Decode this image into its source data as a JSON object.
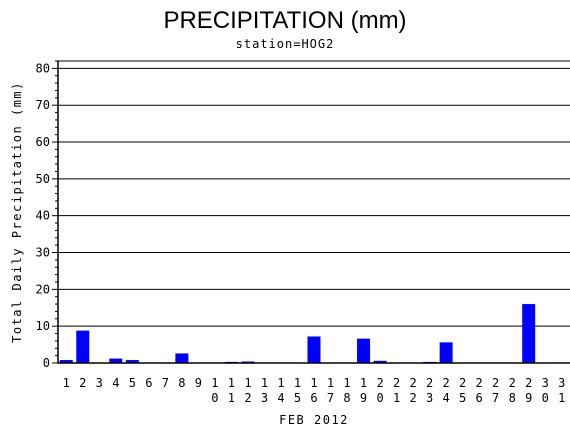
{
  "chart_data": {
    "type": "bar",
    "title": "PRECIPITATION (mm)",
    "subtitle": "station=HOG2",
    "xlabel": "FEB 2012",
    "ylabel": "Total Daily Precipitation (mm)",
    "ylim": [
      0,
      82
    ],
    "yticks": [
      0,
      10,
      20,
      30,
      40,
      50,
      60,
      70,
      80
    ],
    "grid": true,
    "categories": [
      "1",
      "2",
      "3",
      "4",
      "5",
      "6",
      "7",
      "8",
      "9",
      "10",
      "11",
      "12",
      "13",
      "14",
      "15",
      "16",
      "17",
      "18",
      "19",
      "20",
      "21",
      "22",
      "23",
      "24",
      "25",
      "26",
      "27",
      "28",
      "29",
      "30",
      "31"
    ],
    "values": [
      0.8,
      8.8,
      0,
      1.2,
      0.8,
      0,
      0,
      2.6,
      0,
      0,
      0.3,
      0.4,
      0,
      0,
      0,
      7.2,
      0,
      0,
      6.6,
      0.6,
      0,
      0,
      0.3,
      5.6,
      0,
      0,
      0,
      0,
      16.0,
      0,
      0
    ],
    "bar_color": "#0000ff"
  }
}
